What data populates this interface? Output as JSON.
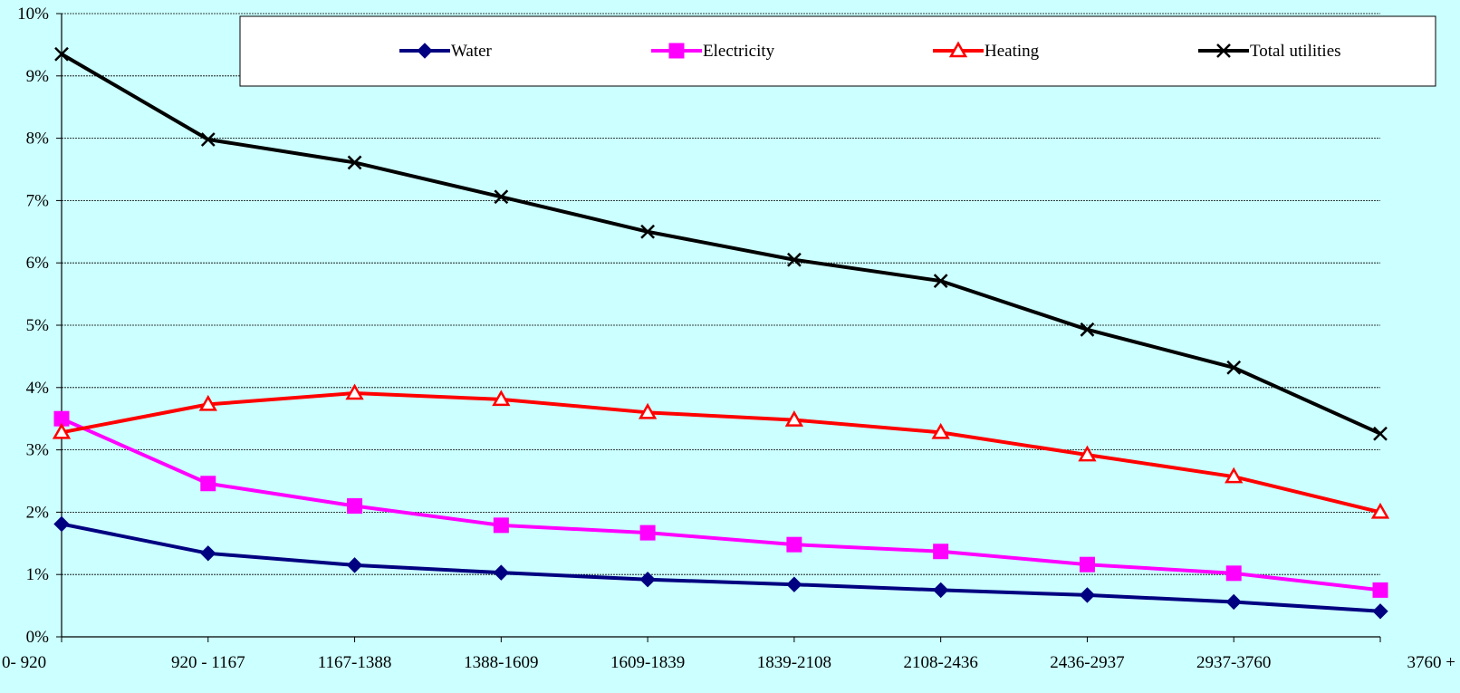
{
  "chart_data": {
    "type": "line",
    "title": "",
    "xlabel": "",
    "ylabel": "",
    "ylim": [
      0,
      0.1
    ],
    "y_tick_step": 0.01,
    "y_tick_format": "percent",
    "grid": "horizontal",
    "legend_position": "top",
    "background_color": "#ccffff",
    "categories": [
      "0- 920",
      "920 - 1167",
      "1167-1388",
      "1388-1609",
      "1609-1839",
      "1839-2108",
      "2108-2436",
      "2436-2937",
      "2937-3760",
      "3760 +"
    ],
    "series": [
      {
        "name": "Water",
        "color": "#000080",
        "marker": "diamond",
        "values": [
          0.0181,
          0.0134,
          0.0115,
          0.0103,
          0.0092,
          0.0084,
          0.0075,
          0.0067,
          0.0056,
          0.0041
        ]
      },
      {
        "name": "Electricity",
        "color": "#ff00ff",
        "marker": "square",
        "values": [
          0.035,
          0.0246,
          0.021,
          0.0179,
          0.0167,
          0.0148,
          0.0137,
          0.0116,
          0.0102,
          0.0075
        ]
      },
      {
        "name": "Heating",
        "color": "#ff0000",
        "marker": "triangle",
        "values": [
          0.0328,
          0.0373,
          0.0391,
          0.0381,
          0.036,
          0.0348,
          0.0328,
          0.0292,
          0.0257,
          0.02
        ]
      },
      {
        "name": "Total utilities",
        "color": "#000000",
        "marker": "x",
        "values": [
          0.0935,
          0.0798,
          0.0761,
          0.0706,
          0.065,
          0.0605,
          0.0571,
          0.0493,
          0.0432,
          0.0326
        ]
      }
    ]
  }
}
